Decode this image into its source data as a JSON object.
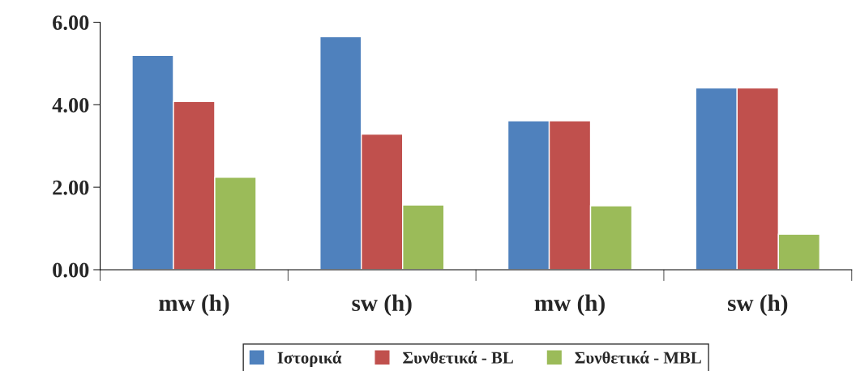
{
  "chart_data": {
    "type": "bar",
    "categories": [
      "mw (h)",
      "sw (h)",
      "mw (h)",
      "sw (h)"
    ],
    "series": [
      {
        "name": "Ιστορικά",
        "color": "#4f81bd",
        "values": [
          5.2,
          5.65,
          3.61,
          4.41
        ]
      },
      {
        "name": "Συνθετικά - BL",
        "color": "#c0504d",
        "values": [
          4.08,
          3.29,
          3.61,
          4.41
        ]
      },
      {
        "name": "Συνθετικά - MBL",
        "color": "#9bbb59",
        "values": [
          2.24,
          1.57,
          1.55,
          0.86
        ]
      }
    ],
    "ylim": [
      0,
      6
    ],
    "yticks": [
      {
        "value": 0,
        "label": "0.00"
      },
      {
        "value": 2,
        "label": "2.00"
      },
      {
        "value": 4,
        "label": "4.00"
      },
      {
        "value": 6,
        "label": "6.00"
      }
    ],
    "grid": false,
    "legend": "bottom"
  }
}
